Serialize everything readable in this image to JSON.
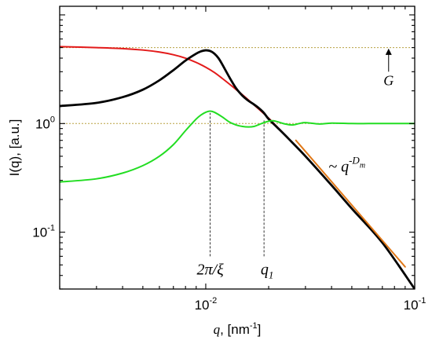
{
  "chart_data": {
    "type": "line",
    "title": "",
    "xlabel": {
      "var": "q",
      "unit": ", [nm",
      "sup": "-1",
      "close": "]"
    },
    "ylabel": "I(q), [a.u.]",
    "x_scale": "log",
    "y_scale": "log",
    "xlim": [
      0.002,
      0.1
    ],
    "ylim": [
      0.03,
      12
    ],
    "x_ticks": [
      {
        "value": 0.01,
        "base": "10",
        "exp": "-2"
      },
      {
        "value": 0.1,
        "base": "10",
        "exp": "-1"
      }
    ],
    "y_ticks": [
      {
        "value": 0.1,
        "base": "10",
        "exp": "-1"
      },
      {
        "value": 1,
        "label": "10",
        "sup": "0"
      }
    ],
    "grid": false,
    "legend": "none",
    "reference_lines": [
      {
        "axis": "y",
        "value": 5.0,
        "color": "#b8a040",
        "style": "dotted"
      },
      {
        "axis": "y",
        "value": 1.0,
        "color": "#b8a040",
        "style": "dotted"
      },
      {
        "axis": "x",
        "value": 0.0105,
        "y_from": 0.06,
        "y_to": 1.25,
        "color": "#000000",
        "style": "dashed"
      },
      {
        "axis": "x",
        "value": 0.019,
        "y_from": 0.06,
        "y_to": 1.1,
        "color": "#000000",
        "style": "dashed"
      }
    ],
    "annotations": {
      "G": {
        "text": "G",
        "x": 0.075,
        "y": 2.5
      },
      "G_arrow": {
        "x": 0.075,
        "y_from": 3.0,
        "y_to": 4.9
      },
      "two_pi_xi": {
        "text": "2π/ξ",
        "x": 0.0105,
        "y": 0.045
      },
      "q1": {
        "text": "q",
        "sub": "1",
        "x": 0.019,
        "y": 0.045
      },
      "power_law": {
        "text": "~ q",
        "sup": "-D",
        "supsub": "m",
        "x": 0.046,
        "y": 0.4
      }
    },
    "series": [
      {
        "color": "#e31a1a",
        "x": [
          0.002,
          0.003,
          0.004,
          0.005,
          0.006,
          0.007,
          0.008,
          0.009,
          0.01,
          0.011,
          0.012,
          0.014,
          0.016,
          0.018,
          0.02,
          0.022,
          0.025,
          0.03,
          0.04,
          0.05,
          0.07,
          0.1
        ],
        "y": [
          5.1,
          5.0,
          4.9,
          4.75,
          4.55,
          4.3,
          4.0,
          3.65,
          3.3,
          2.95,
          2.6,
          2.05,
          1.65,
          1.35,
          1.12,
          0.93,
          0.72,
          0.5,
          0.27,
          0.165,
          0.08,
          0.03
        ]
      },
      {
        "color": "#000000",
        "x": [
          0.002,
          0.003,
          0.004,
          0.005,
          0.006,
          0.007,
          0.008,
          0.009,
          0.0095,
          0.01,
          0.0105,
          0.011,
          0.0115,
          0.012,
          0.013,
          0.014,
          0.015,
          0.016,
          0.017,
          0.018,
          0.019,
          0.02,
          0.022,
          0.025,
          0.03,
          0.04,
          0.05,
          0.07,
          0.1
        ],
        "y": [
          1.45,
          1.55,
          1.75,
          2.05,
          2.5,
          3.1,
          3.8,
          4.4,
          4.62,
          4.72,
          4.65,
          4.4,
          4.0,
          3.5,
          2.65,
          2.1,
          1.8,
          1.62,
          1.5,
          1.38,
          1.25,
          1.1,
          0.92,
          0.72,
          0.5,
          0.27,
          0.165,
          0.08,
          0.03
        ]
      },
      {
        "color": "#22dd22",
        "x": [
          0.002,
          0.003,
          0.004,
          0.005,
          0.006,
          0.007,
          0.008,
          0.009,
          0.0095,
          0.01,
          0.0105,
          0.011,
          0.012,
          0.013,
          0.014,
          0.015,
          0.016,
          0.017,
          0.018,
          0.019,
          0.02,
          0.021,
          0.022,
          0.024,
          0.026,
          0.028,
          0.03,
          0.035,
          0.04,
          0.05,
          0.06,
          0.07,
          0.08,
          0.1
        ],
        "y": [
          0.29,
          0.31,
          0.35,
          0.41,
          0.5,
          0.64,
          0.86,
          1.1,
          1.2,
          1.27,
          1.3,
          1.27,
          1.15,
          1.03,
          0.97,
          0.94,
          0.93,
          0.94,
          0.98,
          1.02,
          1.05,
          1.06,
          1.04,
          0.99,
          0.97,
          1.0,
          1.02,
          0.99,
          1.01,
          1.0,
          1.0,
          1.0,
          1.0,
          1.0
        ]
      },
      {
        "color": "#e07818",
        "x": [
          0.027,
          0.09
        ],
        "y": [
          0.7,
          0.048
        ]
      }
    ]
  }
}
